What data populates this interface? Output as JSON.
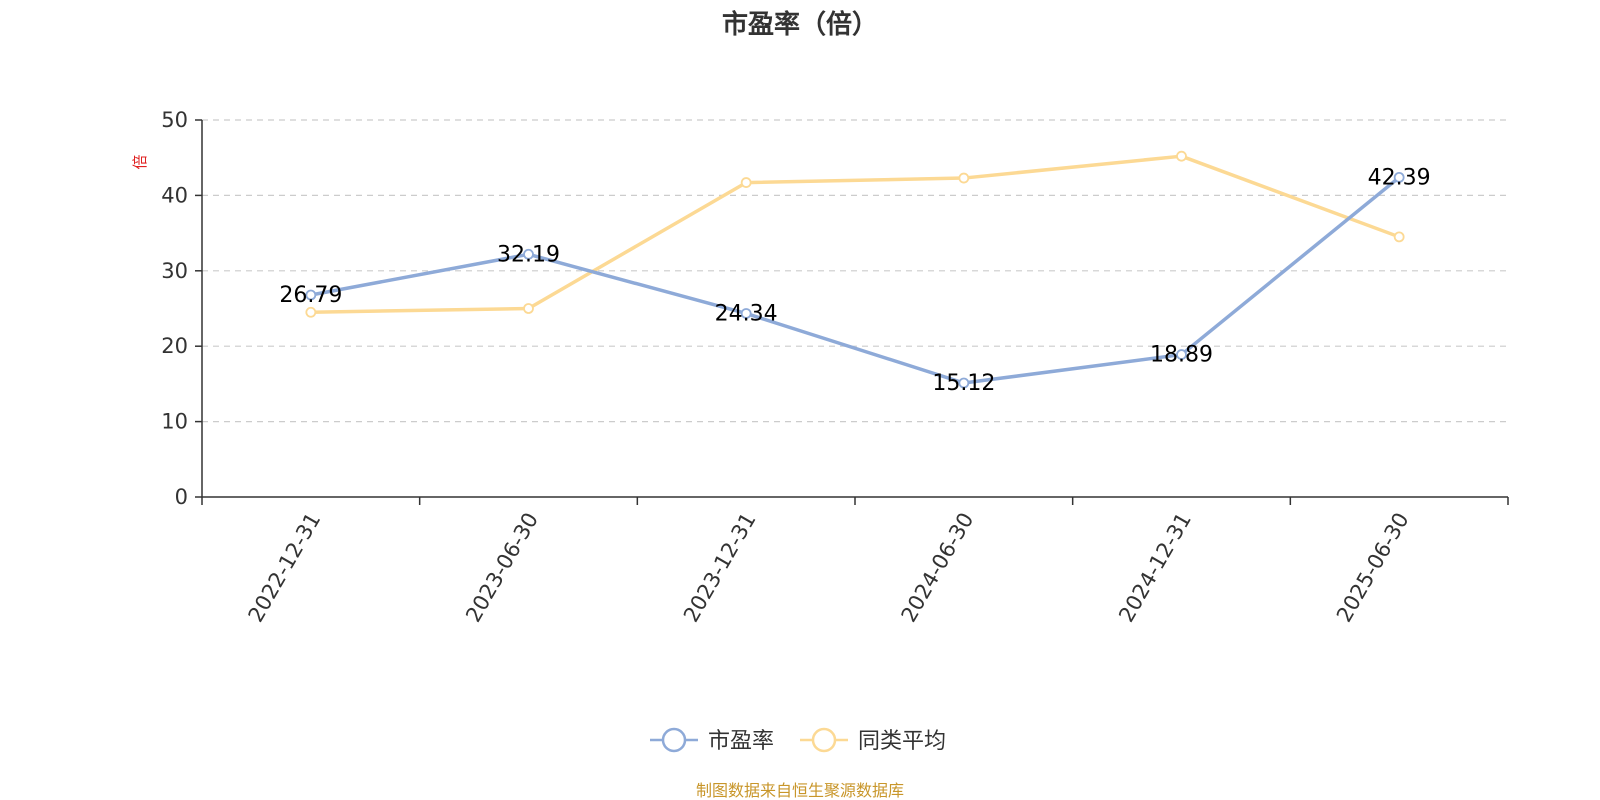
{
  "title": "市盈率（倍）",
  "source": "制图数据来自恒生聚源数据库",
  "chart_data": {
    "type": "line",
    "title": "市盈率（倍）",
    "ylabel": "倍",
    "xlabel": "",
    "categories": [
      "2022-12-31",
      "2023-06-30",
      "2023-12-31",
      "2024-06-30",
      "2024-12-31",
      "2025-06-30"
    ],
    "ylim": [
      0,
      50
    ],
    "yticks": [
      0,
      10,
      20,
      30,
      40,
      50
    ],
    "grid": true,
    "legend_position": "bottom",
    "series": [
      {
        "name": "市盈率",
        "values": [
          26.79,
          32.19,
          24.34,
          15.12,
          18.89,
          42.39
        ],
        "data_labels": [
          "26.79",
          "32.19",
          "24.34",
          "15.12",
          "18.89",
          "42.39"
        ],
        "color": "#8eaad8"
      },
      {
        "name": "同类平均",
        "values": [
          24.5,
          25.0,
          41.7,
          42.3,
          45.2,
          34.5
        ],
        "color": "#fcd994"
      }
    ]
  }
}
